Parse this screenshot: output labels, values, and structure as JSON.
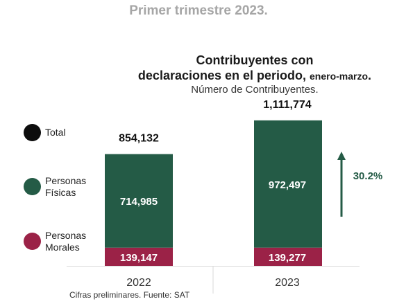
{
  "heading": "Primer trimestre 2023.",
  "title_line1": "Contribuyentes con",
  "title_line2_main": "declaraciones en el periodo, ",
  "title_line2_small": "enero-marzo",
  "title_line2_end": ".",
  "subtitle": "Número de Contribuyentes.",
  "legend": [
    {
      "label": "Total",
      "color": "#0d0d0d"
    },
    {
      "label": "Personas\nFísicas",
      "color": "#245b46"
    },
    {
      "label": "Personas\nMorales",
      "color": "#9b2247"
    }
  ],
  "growth_label": "30.2%",
  "footnote": "Cifras preliminares. Fuente: SAT",
  "colors": {
    "fisicas": "#245b46",
    "morales": "#9b2247",
    "arrow": "#245b46"
  },
  "chart_data": {
    "type": "bar",
    "stacked": true,
    "categories": [
      "2022",
      "2023"
    ],
    "series": [
      {
        "name": "Personas Morales",
        "values": [
          139147,
          139277
        ],
        "labels": [
          "139,147",
          "139,277"
        ]
      },
      {
        "name": "Personas Físicas",
        "values": [
          714985,
          972497
        ],
        "labels": [
          "714,985",
          "972,497"
        ]
      }
    ],
    "totals": [
      854132,
      1111774
    ],
    "total_labels": [
      "854,132",
      "1,111,774"
    ],
    "title": "Contribuyentes con declaraciones en el periodo, enero-marzo.",
    "subtitle": "Número de Contribuyentes.",
    "grid": false,
    "legend_position": "left"
  }
}
